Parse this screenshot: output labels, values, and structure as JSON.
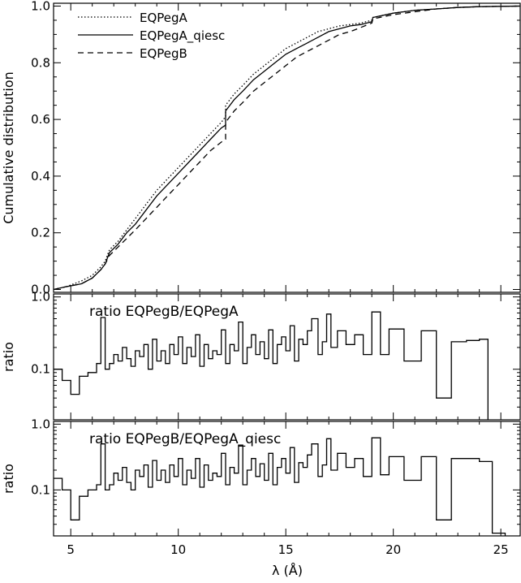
{
  "chart_data": {
    "type": "line",
    "xlabel": "λ (Å)",
    "x_ticks": [
      5,
      10,
      15,
      20,
      25
    ],
    "xlim": [
      4.2,
      25.9
    ],
    "panels": [
      {
        "id": "cumulative",
        "ylabel": "Cumulative distribution",
        "ylim": [
          -0.01,
          1.01
        ],
        "y_scale": "linear",
        "y_ticks": [
          "0.0",
          "0.2",
          "0.4",
          "0.6",
          "0.8",
          "1.0"
        ],
        "y_tick_values": [
          0.0,
          0.2,
          0.4,
          0.6,
          0.8,
          1.0
        ],
        "legend_position": "top-left",
        "series": [
          {
            "name": "EQPegA",
            "style": "dotted",
            "x": [
              4.2,
              4.8,
              5.5,
              6.0,
              6.4,
              6.6,
              6.8,
              7.2,
              7.6,
              8.0,
              8.5,
              9.0,
              9.5,
              10.0,
              10.5,
              11.0,
              11.5,
              12.0,
              12.2,
              12.2,
              12.6,
              13.0,
              13.5,
              14.0,
              14.5,
              15.0,
              15.5,
              16.0,
              16.5,
              17.0,
              17.5,
              18.0,
              18.5,
              19.0,
              19.05,
              20.0,
              21.0,
              22.0,
              23.0,
              24.0,
              25.0,
              25.9
            ],
            "y": [
              0.0,
              0.01,
              0.03,
              0.05,
              0.08,
              0.1,
              0.14,
              0.17,
              0.21,
              0.25,
              0.3,
              0.35,
              0.39,
              0.43,
              0.47,
              0.51,
              0.55,
              0.59,
              0.61,
              0.65,
              0.69,
              0.72,
              0.76,
              0.79,
              0.82,
              0.85,
              0.87,
              0.89,
              0.91,
              0.92,
              0.93,
              0.935,
              0.94,
              0.95,
              0.96,
              0.975,
              0.985,
              0.99,
              0.995,
              0.998,
              0.999,
              1.0
            ]
          },
          {
            "name": "EQPegA_qiesc",
            "style": "solid",
            "x": [
              4.2,
              4.8,
              5.5,
              6.0,
              6.4,
              6.6,
              6.8,
              7.2,
              7.6,
              8.0,
              8.5,
              9.0,
              9.5,
              10.0,
              10.5,
              11.0,
              11.5,
              12.0,
              12.2,
              12.2,
              12.6,
              13.0,
              13.5,
              14.0,
              14.5,
              15.0,
              15.5,
              16.0,
              16.5,
              17.0,
              17.5,
              18.0,
              18.5,
              19.0,
              19.05,
              20.0,
              21.0,
              22.0,
              23.0,
              24.0,
              25.0,
              25.9
            ],
            "y": [
              0.0,
              0.01,
              0.02,
              0.04,
              0.07,
              0.09,
              0.13,
              0.16,
              0.2,
              0.23,
              0.28,
              0.33,
              0.37,
              0.41,
              0.45,
              0.49,
              0.53,
              0.57,
              0.58,
              0.63,
              0.67,
              0.7,
              0.74,
              0.77,
              0.8,
              0.83,
              0.85,
              0.87,
              0.89,
              0.91,
              0.92,
              0.93,
              0.935,
              0.945,
              0.96,
              0.975,
              0.985,
              0.99,
              0.995,
              0.998,
              0.999,
              1.0
            ]
          },
          {
            "name": "EQPegB",
            "style": "dashed",
            "x": [
              4.2,
              4.8,
              5.5,
              6.0,
              6.4,
              6.6,
              6.8,
              7.2,
              7.6,
              8.0,
              8.5,
              9.0,
              9.5,
              10.0,
              10.5,
              11.0,
              11.5,
              12.0,
              12.2,
              12.2,
              12.6,
              13.0,
              13.5,
              14.0,
              14.5,
              15.0,
              15.5,
              16.0,
              16.5,
              17.0,
              17.5,
              18.0,
              18.5,
              19.0,
              19.05,
              20.0,
              21.0,
              22.0,
              23.0,
              24.0,
              25.0,
              25.9
            ],
            "y": [
              0.0,
              0.01,
              0.02,
              0.04,
              0.07,
              0.09,
              0.12,
              0.15,
              0.18,
              0.21,
              0.25,
              0.29,
              0.33,
              0.37,
              0.41,
              0.45,
              0.49,
              0.52,
              0.53,
              0.59,
              0.63,
              0.66,
              0.7,
              0.73,
              0.76,
              0.79,
              0.82,
              0.84,
              0.86,
              0.88,
              0.9,
              0.91,
              0.925,
              0.94,
              0.955,
              0.97,
              0.98,
              0.99,
              0.995,
              0.998,
              0.999,
              1.0
            ]
          }
        ]
      },
      {
        "id": "ratio-a",
        "title": "ratio  EQPegB/EQPegA",
        "ylabel": "ratio",
        "ylim": [
          0.02,
          1.1
        ],
        "y_scale": "log",
        "y_ticks": [
          "0.1",
          "1.0"
        ],
        "y_tick_values": [
          0.1,
          1.0
        ],
        "series": [
          {
            "name": "",
            "style": "steps",
            "x": [
              4.2,
              4.6,
              5.0,
              5.4,
              5.8,
              6.2,
              6.4,
              6.6,
              6.8,
              7.0,
              7.2,
              7.4,
              7.6,
              7.8,
              8.0,
              8.2,
              8.4,
              8.6,
              8.8,
              9.0,
              9.2,
              9.4,
              9.6,
              9.8,
              10.0,
              10.2,
              10.4,
              10.6,
              10.8,
              11.0,
              11.2,
              11.4,
              11.6,
              11.8,
              12.0,
              12.2,
              12.4,
              12.6,
              12.8,
              13.0,
              13.2,
              13.4,
              13.6,
              13.8,
              14.0,
              14.2,
              14.4,
              14.6,
              14.8,
              15.0,
              15.2,
              15.4,
              15.6,
              15.8,
              16.0,
              16.2,
              16.5,
              16.7,
              16.9,
              17.1,
              17.4,
              17.8,
              18.2,
              18.6,
              19.0,
              19.4,
              19.8,
              20.5,
              21.3,
              22.0,
              22.7,
              23.4,
              24.0
            ],
            "y": [
              0.1,
              0.07,
              0.045,
              0.08,
              0.09,
              0.12,
              0.52,
              0.1,
              0.12,
              0.16,
              0.13,
              0.2,
              0.14,
              0.11,
              0.18,
              0.15,
              0.22,
              0.1,
              0.26,
              0.13,
              0.18,
              0.12,
              0.22,
              0.16,
              0.28,
              0.12,
              0.2,
              0.15,
              0.3,
              0.11,
              0.22,
              0.14,
              0.18,
              0.16,
              0.35,
              0.12,
              0.22,
              0.18,
              0.45,
              0.12,
              0.2,
              0.3,
              0.16,
              0.24,
              0.14,
              0.35,
              0.12,
              0.22,
              0.28,
              0.18,
              0.4,
              0.13,
              0.26,
              0.22,
              0.34,
              0.5,
              0.16,
              0.24,
              0.58,
              0.2,
              0.34,
              0.22,
              0.3,
              0.16,
              0.62,
              0.16,
              0.36,
              0.13,
              0.34,
              0.04,
              0.24,
              0.25,
              0.26
            ],
            "x_end": 24.4
          }
        ]
      },
      {
        "id": "ratio-b",
        "title": "ratio  EQPegB/EQPegA_qiesc",
        "ylabel": "ratio",
        "ylim": [
          0.02,
          1.1
        ],
        "y_scale": "log",
        "y_ticks": [
          "0.1",
          "1.0"
        ],
        "y_tick_values": [
          0.1,
          1.0
        ],
        "series": [
          {
            "name": "",
            "style": "steps",
            "x": [
              4.2,
              4.6,
              5.0,
              5.4,
              5.8,
              6.2,
              6.4,
              6.6,
              6.8,
              7.0,
              7.2,
              7.4,
              7.6,
              7.8,
              8.0,
              8.2,
              8.4,
              8.6,
              8.8,
              9.0,
              9.2,
              9.4,
              9.6,
              9.8,
              10.0,
              10.2,
              10.4,
              10.6,
              10.8,
              11.0,
              11.2,
              11.4,
              11.6,
              11.8,
              12.0,
              12.2,
              12.4,
              12.6,
              12.8,
              13.0,
              13.2,
              13.4,
              13.6,
              13.8,
              14.0,
              14.2,
              14.4,
              14.6,
              14.8,
              15.0,
              15.2,
              15.4,
              15.6,
              15.8,
              16.0,
              16.2,
              16.5,
              16.7,
              16.9,
              17.1,
              17.4,
              17.8,
              18.2,
              18.6,
              19.0,
              19.4,
              19.8,
              20.5,
              21.3,
              22.0,
              22.7,
              23.4,
              24.0,
              24.6
            ],
            "y": [
              0.15,
              0.1,
              0.035,
              0.08,
              0.1,
              0.12,
              0.5,
              0.1,
              0.12,
              0.18,
              0.14,
              0.22,
              0.13,
              0.1,
              0.2,
              0.16,
              0.24,
              0.11,
              0.28,
              0.14,
              0.2,
              0.13,
              0.24,
              0.16,
              0.3,
              0.12,
              0.2,
              0.15,
              0.3,
              0.11,
              0.24,
              0.14,
              0.18,
              0.16,
              0.36,
              0.12,
              0.22,
              0.18,
              0.48,
              0.12,
              0.2,
              0.3,
              0.16,
              0.25,
              0.14,
              0.36,
              0.12,
              0.22,
              0.3,
              0.18,
              0.44,
              0.13,
              0.26,
              0.22,
              0.34,
              0.5,
              0.16,
              0.24,
              0.6,
              0.2,
              0.36,
              0.22,
              0.3,
              0.16,
              0.62,
              0.17,
              0.32,
              0.14,
              0.32,
              0.035,
              0.3,
              0.3,
              0.27,
              0.022
            ],
            "x_end": 25.2
          }
        ]
      }
    ]
  }
}
